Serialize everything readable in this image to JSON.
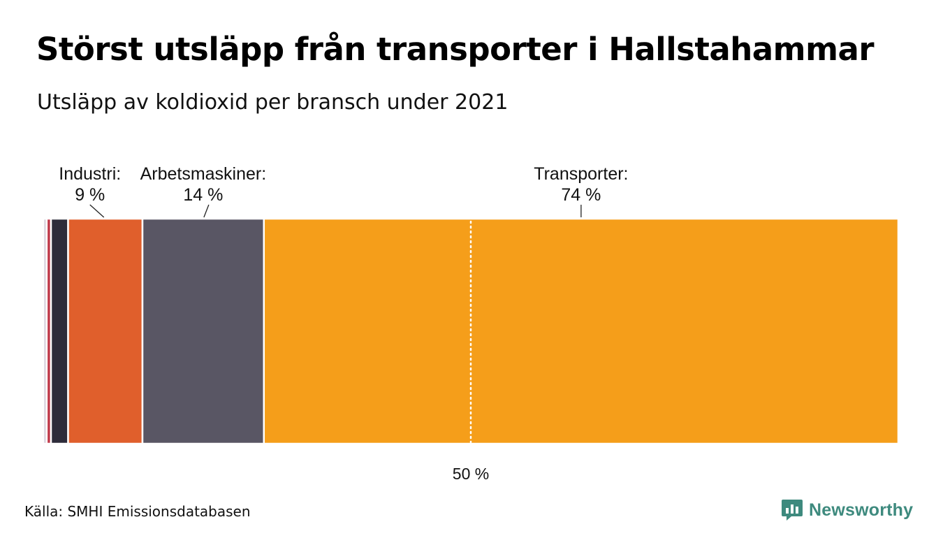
{
  "title": "Störst utsläpp från transporter i Hallstahammar",
  "subtitle": "Utsläpp av koldioxid per bransch under 2021",
  "source": "Källa: SMHI Emissionsdatabasen",
  "brand": {
    "name": "Newsworthy",
    "logo_icon": "bar-chart-speech-bubble-icon",
    "color": "#3e8a7e"
  },
  "chart_data": {
    "type": "bar",
    "orientation": "horizontal-stacked-100",
    "total": 100,
    "reference_line": {
      "value": 50,
      "label": "50 %",
      "style": "dotted"
    },
    "segments": [
      {
        "name": "",
        "value": 0.4,
        "color": "#d9d2dd",
        "label": ""
      },
      {
        "name": "",
        "value": 0.5,
        "color": "#c0394a",
        "label": ""
      },
      {
        "name": "",
        "value": 2.0,
        "color": "#2e2c3a",
        "label": ""
      },
      {
        "name": "Industri:",
        "value": 8.7,
        "color": "#e05f2c",
        "label": "9 %"
      },
      {
        "name": "Arbetsmaskiner:",
        "value": 14.2,
        "color": "#595664",
        "label": "14 %"
      },
      {
        "name": "Transporter:",
        "value": 74.2,
        "color": "#f59e1a",
        "label": "74 %"
      }
    ]
  }
}
